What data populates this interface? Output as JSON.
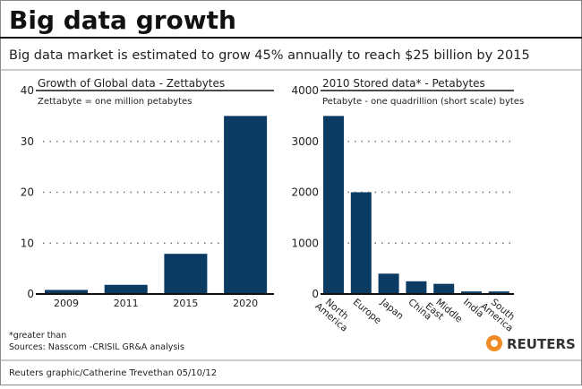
{
  "header": {
    "title": "Big data growth",
    "subtitle": "Big data market is estimated to grow 45% annually to reach $25 billion by 2015"
  },
  "bar_color": "#0b3a63",
  "chart_data": [
    {
      "type": "bar",
      "title": "Growth of Global data - Zettabytes",
      "subtitle": "Zettabyte = one million petabytes",
      "categories": [
        "2009",
        "2011",
        "2015",
        "2020"
      ],
      "values": [
        0.8,
        1.8,
        7.9,
        35
      ],
      "ylim": [
        0,
        40
      ],
      "yticks": [
        0,
        10,
        20,
        30,
        40
      ],
      "grid": "dotted horizontal"
    },
    {
      "type": "bar",
      "title": "2010 Stored data* - Petabytes",
      "subtitle": "Petabyte - one quadrillion (short scale) bytes",
      "categories": [
        "North America",
        "Europe",
        "Japan",
        "China",
        "Middle East",
        "India",
        "South America"
      ],
      "category_lines": [
        [
          "North",
          "America"
        ],
        [
          "Europe"
        ],
        [
          "Japan"
        ],
        [
          "China"
        ],
        [
          "Middle",
          "East"
        ],
        [
          "India"
        ],
        [
          "South",
          "America"
        ]
      ],
      "values": [
        3500,
        2000,
        400,
        250,
        200,
        50,
        50
      ],
      "ylim": [
        0,
        4000
      ],
      "yticks": [
        0,
        1000,
        2000,
        3000,
        4000
      ],
      "grid": "dotted horizontal"
    }
  ],
  "footer": {
    "note": "*greater than",
    "sources": "Sources: Nasscom -CRISIL GR&A analysis",
    "credit": "Reuters graphic/Catherine Trevethan   05/10/12",
    "logo": "REUTERS"
  }
}
